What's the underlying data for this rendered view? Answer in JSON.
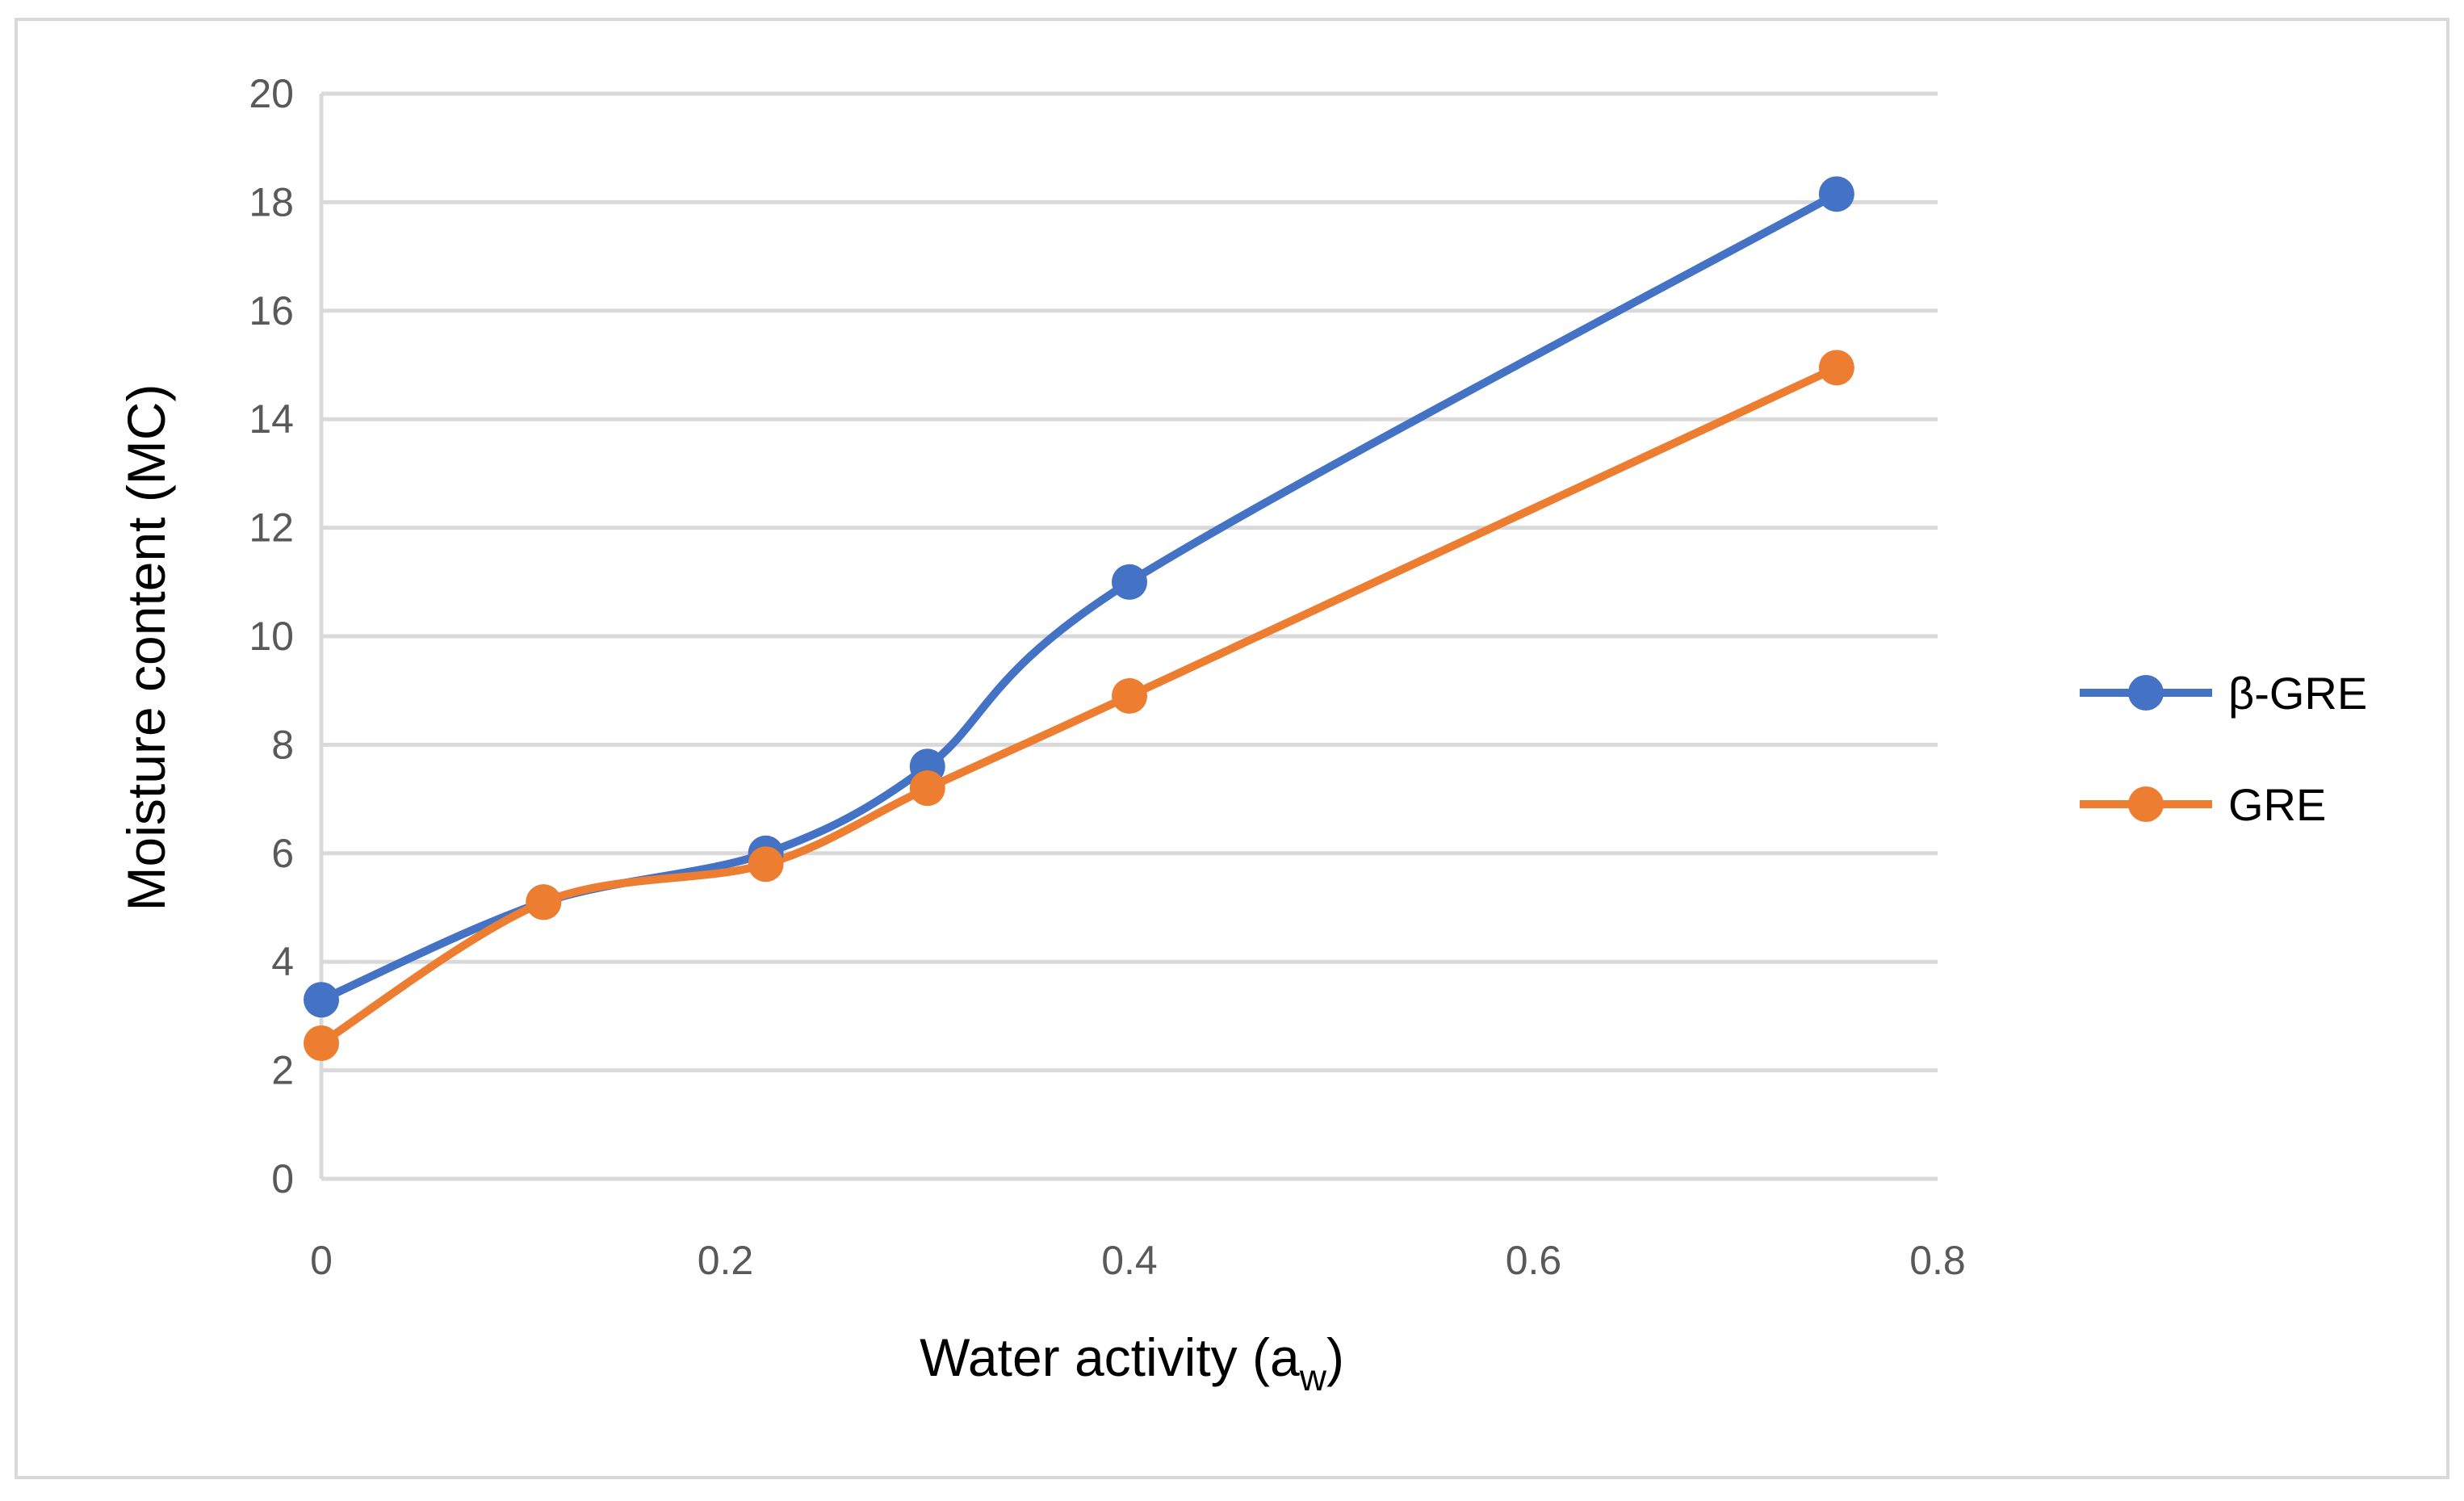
{
  "chart_data": {
    "type": "line",
    "title": "",
    "xlabel": "Water activity (a",
    "xlabel_subscript": "w",
    "xlabel_suffix": ")",
    "ylabel": "Moisture content (MC)",
    "xlim": [
      0,
      0.8
    ],
    "ylim": [
      0,
      20
    ],
    "x_ticks": [
      0,
      0.2,
      0.4,
      0.6,
      0.8
    ],
    "x_tick_labels": [
      "0",
      "0.2",
      "0.4",
      "0.6",
      "0.8"
    ],
    "y_ticks": [
      0,
      2,
      4,
      6,
      8,
      10,
      12,
      14,
      16,
      18,
      20
    ],
    "y_tick_labels": [
      "0",
      "2",
      "4",
      "6",
      "8",
      "10",
      "12",
      "14",
      "16",
      "18",
      "20"
    ],
    "grid": "horizontal",
    "smooth": true,
    "legend_position": "right",
    "series": [
      {
        "name": "β-GRE",
        "color": "#4472C4",
        "x": [
          0,
          0.11,
          0.22,
          0.3,
          0.4,
          0.75
        ],
        "y": [
          3.3,
          5.1,
          6.0,
          7.6,
          11.0,
          18.15
        ]
      },
      {
        "name": "GRE",
        "color": "#ED7D31",
        "x": [
          0,
          0.11,
          0.22,
          0.3,
          0.4,
          0.75
        ],
        "y": [
          2.5,
          5.1,
          5.8,
          7.2,
          8.9,
          14.95
        ]
      }
    ]
  }
}
